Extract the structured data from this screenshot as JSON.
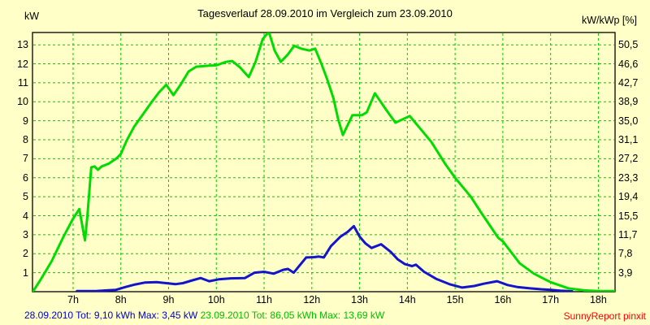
{
  "colors": {
    "background": "#FFFFC8",
    "grid_green": "#00CC00",
    "curve_green": "#00DC00",
    "curve_blue": "#1414CC",
    "text_blue": "#0000CC",
    "text_green": "#00BE00",
    "brand_red": "#FF0000",
    "axis_black": "#000000"
  },
  "footer": {
    "series_blue": "28.09.2010 Tot: 9,10 kWh Max: 3,45 kW",
    "series_green": "23.09.2010 Tot: 86,05 kWh Max: 13,69 kW",
    "brand": "SunnyReport pinxit"
  },
  "chart_data": {
    "type": "line",
    "title": "Tagesverlauf 28.09.2010 im Vergleich zum 23.09.2010",
    "grid": true,
    "legend_position": "none",
    "left_axis": {
      "unit": "kW",
      "ticks": [
        1,
        2,
        3,
        4,
        5,
        6,
        7,
        8,
        9,
        10,
        11,
        12,
        13
      ]
    },
    "right_axis": {
      "unit": "kW/kWp [%]",
      "tick_labels": [
        "3,9",
        "7,8",
        "11,7",
        "15,5",
        "19,4",
        "23,3",
        "27,2",
        "31,1",
        "35,0",
        "38,9",
        "42,7",
        "46,6",
        "50,5"
      ]
    },
    "x_axis": {
      "hours": [
        7,
        8,
        9,
        10,
        11,
        12,
        13,
        14,
        15,
        16,
        17,
        18
      ],
      "labels": [
        "7h",
        "8h",
        "9h",
        "10h",
        "11h",
        "12h",
        "13h",
        "14h",
        "15h",
        "16h",
        "17h",
        "18h"
      ]
    },
    "xlim": [
      6.15,
      18.35
    ],
    "ylim": [
      0,
      13.65
    ],
    "series": [
      {
        "name": "28.09.2010",
        "color_key": "curve_blue",
        "total_kwh": "9,10",
        "max_kw": "3,45",
        "points": [
          [
            7.08,
            0.03
          ],
          [
            7.5,
            0.04
          ],
          [
            7.9,
            0.1
          ],
          [
            8.1,
            0.25
          ],
          [
            8.3,
            0.38
          ],
          [
            8.5,
            0.48
          ],
          [
            8.75,
            0.5
          ],
          [
            8.95,
            0.45
          ],
          [
            9.15,
            0.4
          ],
          [
            9.3,
            0.45
          ],
          [
            9.5,
            0.6
          ],
          [
            9.67,
            0.72
          ],
          [
            9.85,
            0.55
          ],
          [
            10.05,
            0.65
          ],
          [
            10.3,
            0.7
          ],
          [
            10.6,
            0.72
          ],
          [
            10.8,
            1.0
          ],
          [
            11.0,
            1.05
          ],
          [
            11.2,
            0.95
          ],
          [
            11.4,
            1.15
          ],
          [
            11.5,
            1.2
          ],
          [
            11.62,
            1.0
          ],
          [
            11.75,
            1.4
          ],
          [
            11.88,
            1.8
          ],
          [
            12.05,
            1.82
          ],
          [
            12.15,
            1.85
          ],
          [
            12.25,
            1.8
          ],
          [
            12.4,
            2.4
          ],
          [
            12.6,
            2.9
          ],
          [
            12.75,
            3.15
          ],
          [
            12.88,
            3.45
          ],
          [
            13.0,
            2.9
          ],
          [
            13.12,
            2.55
          ],
          [
            13.25,
            2.3
          ],
          [
            13.45,
            2.5
          ],
          [
            13.65,
            2.1
          ],
          [
            13.8,
            1.7
          ],
          [
            13.95,
            1.45
          ],
          [
            14.1,
            1.35
          ],
          [
            14.18,
            1.42
          ],
          [
            14.35,
            1.05
          ],
          [
            14.6,
            0.68
          ],
          [
            14.9,
            0.38
          ],
          [
            15.15,
            0.22
          ],
          [
            15.4,
            0.3
          ],
          [
            15.6,
            0.42
          ],
          [
            15.88,
            0.55
          ],
          [
            16.1,
            0.35
          ],
          [
            16.3,
            0.25
          ],
          [
            16.55,
            0.18
          ],
          [
            16.8,
            0.13
          ],
          [
            17.0,
            0.1
          ],
          [
            17.2,
            0.05
          ],
          [
            17.45,
            0.02
          ]
        ]
      },
      {
        "name": "23.09.2010",
        "color_key": "curve_green",
        "total_kwh": "86,05",
        "max_kw": "13,69",
        "points": [
          [
            6.17,
            0.05
          ],
          [
            6.3,
            0.55
          ],
          [
            6.55,
            1.6
          ],
          [
            6.8,
            2.9
          ],
          [
            7.0,
            3.85
          ],
          [
            7.13,
            4.35
          ],
          [
            7.25,
            2.7
          ],
          [
            7.3,
            4.0
          ],
          [
            7.38,
            6.55
          ],
          [
            7.45,
            6.6
          ],
          [
            7.52,
            6.42
          ],
          [
            7.6,
            6.6
          ],
          [
            7.75,
            6.75
          ],
          [
            7.9,
            7.0
          ],
          [
            8.0,
            7.25
          ],
          [
            8.12,
            7.95
          ],
          [
            8.28,
            8.7
          ],
          [
            8.45,
            9.3
          ],
          [
            8.65,
            10.0
          ],
          [
            8.8,
            10.5
          ],
          [
            8.95,
            10.9
          ],
          [
            9.1,
            10.35
          ],
          [
            9.25,
            10.9
          ],
          [
            9.42,
            11.6
          ],
          [
            9.58,
            11.85
          ],
          [
            9.83,
            11.9
          ],
          [
            10.0,
            11.92
          ],
          [
            10.2,
            12.1
          ],
          [
            10.33,
            12.15
          ],
          [
            10.5,
            11.8
          ],
          [
            10.68,
            11.3
          ],
          [
            10.82,
            12.1
          ],
          [
            10.97,
            13.3
          ],
          [
            11.1,
            13.69
          ],
          [
            11.22,
            12.7
          ],
          [
            11.35,
            12.1
          ],
          [
            11.5,
            12.5
          ],
          [
            11.63,
            12.95
          ],
          [
            11.78,
            12.8
          ],
          [
            11.95,
            12.7
          ],
          [
            12.07,
            12.8
          ],
          [
            12.2,
            12.0
          ],
          [
            12.32,
            11.2
          ],
          [
            12.45,
            10.2
          ],
          [
            12.55,
            9.1
          ],
          [
            12.65,
            8.25
          ],
          [
            12.85,
            9.3
          ],
          [
            13.05,
            9.3
          ],
          [
            13.15,
            9.45
          ],
          [
            13.32,
            10.45
          ],
          [
            13.55,
            9.6
          ],
          [
            13.75,
            8.9
          ],
          [
            14.05,
            9.25
          ],
          [
            14.3,
            8.5
          ],
          [
            14.5,
            7.9
          ],
          [
            14.8,
            6.7
          ],
          [
            15.0,
            6.0
          ],
          [
            15.33,
            5.0
          ],
          [
            15.55,
            4.15
          ],
          [
            15.9,
            2.85
          ],
          [
            16.0,
            2.65
          ],
          [
            16.35,
            1.5
          ],
          [
            16.65,
            0.95
          ],
          [
            17.0,
            0.5
          ],
          [
            17.37,
            0.18
          ],
          [
            17.7,
            0.07
          ],
          [
            18.0,
            0.03
          ],
          [
            18.34,
            0.03
          ]
        ]
      }
    ]
  }
}
